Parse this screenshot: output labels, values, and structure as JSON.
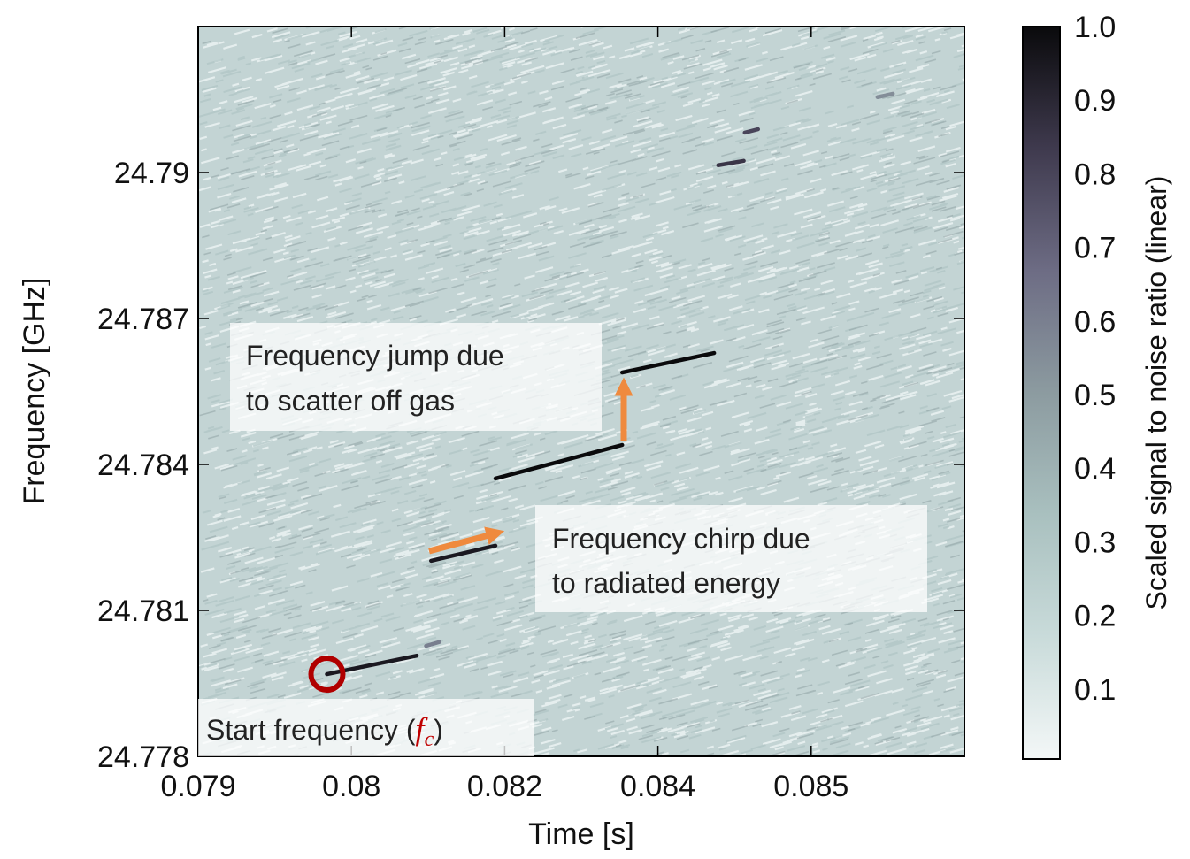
{
  "chart_data": {
    "type": "spectrogram",
    "xlabel": "Time [s]",
    "ylabel": "Frequency [GHz]",
    "xlim": [
      0.079,
      0.0865
    ],
    "xticks": [
      0.079,
      {
        "value": 0.0805,
        "label": "0.08"
      },
      0.082,
      {
        "value": 0.0835,
        "label": "0.084"
      },
      0.085
    ],
    "ylim": [
      24.778,
      24.793
    ],
    "yticks": [
      24.778,
      24.781,
      24.784,
      24.787,
      24.79
    ],
    "colorbar": {
      "label": "Scaled signal to noise ratio (linear)",
      "lim": [
        0,
        1
      ],
      "ticks": [
        0.1,
        0.2,
        0.3,
        0.4,
        0.5,
        0.6,
        0.7,
        0.8,
        0.9,
        {
          "value": 1,
          "label": "1.0"
        }
      ],
      "colors": [
        "#f3f7f7",
        "#c9dbda",
        "#a9c0bf",
        "#8c9ba0",
        "#6d6c84",
        "#3f3a4e",
        "#0a0a0c"
      ]
    },
    "tracks": [
      {
        "x": [
          0.08026,
          0.08114
        ],
        "y": [
          24.77969,
          24.78007
        ],
        "level": 0.95
      },
      {
        "x": [
          0.08123,
          0.08136
        ],
        "y": [
          24.78027,
          24.78035
        ],
        "level": 0.6
      },
      {
        "x": [
          0.08128,
          0.08191
        ],
        "y": [
          24.78202,
          24.78233
        ],
        "level": 0.95
      },
      {
        "x": [
          0.08191,
          0.08315
        ],
        "y": [
          24.78371,
          24.7844
        ],
        "level": 1
      },
      {
        "x": [
          0.08315,
          0.08405
        ],
        "y": [
          24.78589,
          24.78629
        ],
        "level": 1
      },
      {
        "x": [
          0.08409,
          0.08434
        ],
        "y": [
          24.79015,
          24.79024
        ],
        "level": 0.85
      },
      {
        "x": [
          0.08435,
          0.08448
        ],
        "y": [
          24.79082,
          24.79089
        ],
        "level": 0.8
      },
      {
        "x": [
          0.08565,
          0.0858
        ],
        "y": [
          24.79155,
          24.79162
        ],
        "level": 0.55
      }
    ],
    "annotations": {
      "jump": [
        "Frequency jump due",
        "to scatter off gas"
      ],
      "chirp": [
        "Frequency chirp due",
        "to radiated energy"
      ],
      "start": {
        "text": "Start frequency (",
        "symbol": "f",
        "symbol_sub": "c",
        "close": ")"
      }
    }
  }
}
